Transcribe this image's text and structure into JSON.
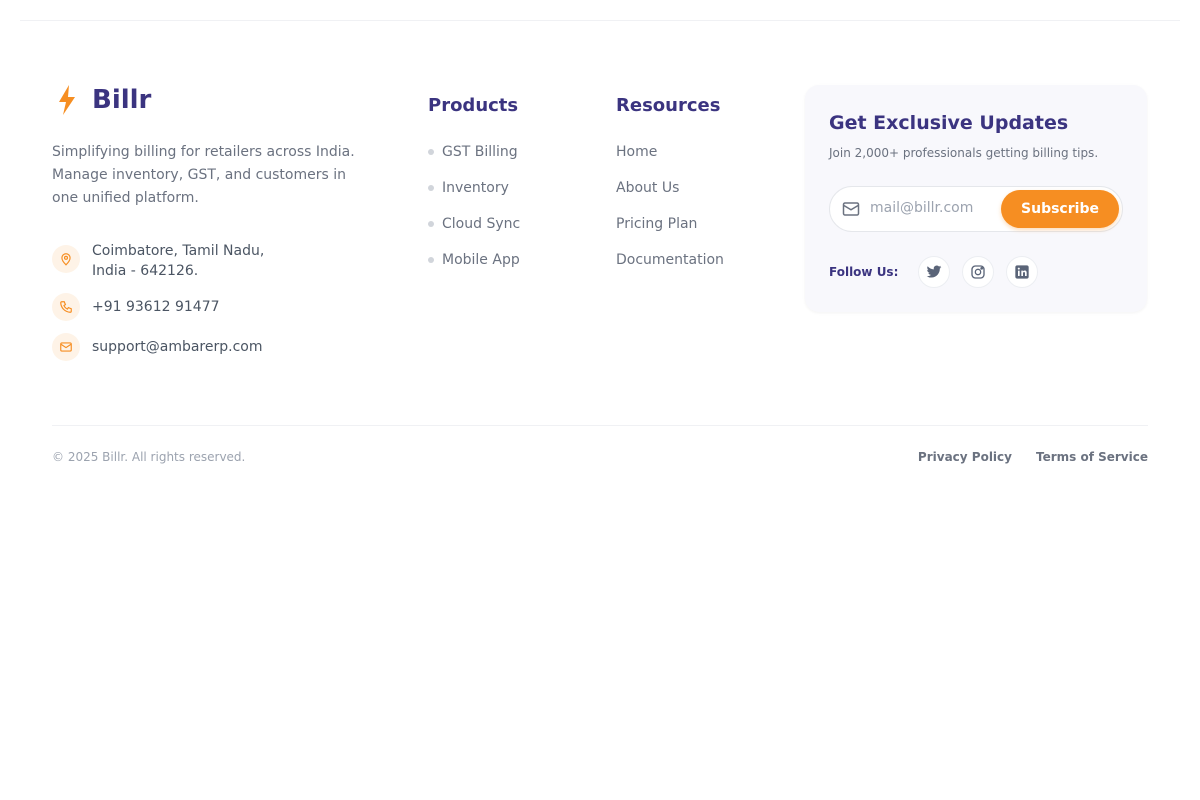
{
  "brand": {
    "name": "Billr",
    "description": "Simplifying billing for retailers across India. Manage inventory, GST, and customers in one unified platform.",
    "accent": "#f68e22",
    "primary": "#3b3480"
  },
  "contact": {
    "address_line1": "Coimbatore, Tamil Nadu,",
    "address_line2": "India - 642126.",
    "phone": "+91 93612 91477",
    "email": "support@ambarerp.com"
  },
  "products": {
    "title": "Products",
    "items": [
      "GST Billing",
      "Inventory",
      "Cloud Sync",
      "Mobile App"
    ]
  },
  "resources": {
    "title": "Resources",
    "items": [
      "Home",
      "About Us",
      "Pricing Plan",
      "Documentation"
    ]
  },
  "newsletter": {
    "title": "Get Exclusive Updates",
    "subtitle": "Join 2,000+ professionals getting billing tips.",
    "placeholder": "mail@billr.com",
    "button": "Subscribe",
    "follow_label": "Follow Us:",
    "socials": [
      "twitter-icon",
      "instagram-icon",
      "linkedin-icon"
    ]
  },
  "footer": {
    "copyright": "© 2025 Billr. All rights reserved.",
    "links": [
      "Privacy Policy",
      "Terms of Service"
    ]
  }
}
